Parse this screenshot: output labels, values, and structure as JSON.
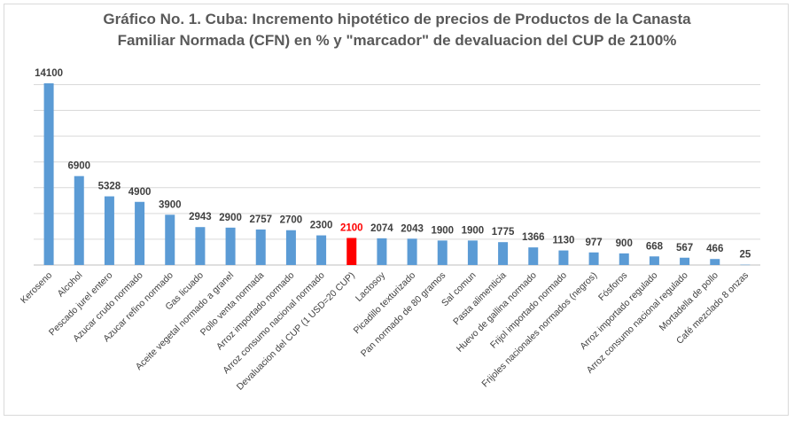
{
  "chart_data": {
    "type": "bar",
    "title_lines": [
      "Gráfico No. 1. Cuba: Incremento hipotético de precios de Productos de la Canasta",
      "Familiar Normada (CFN) en % y \"marcador\" de devaluacion del CUP de 2100%"
    ],
    "categories": [
      "Keroseno",
      "Alcohol",
      "Pescado jurel entero",
      "Azucar crudo normado",
      "Azucar refino normado",
      "Gas licuado",
      "Aceite vegetal normado a granel",
      "Pollo venta normada",
      "Arroz importado normado",
      "Arroz consumo nacional normado",
      "Devaluacion del CUP (1 USD=20 CUP)",
      "Lactosoy",
      "Picadillo texturizado",
      "Pan normado de 80 gramos",
      "Sal comun",
      "Pasta alimenticia",
      "Huevo de gallina normado",
      "Frijol importado normado",
      "Frijoles nacionales normados (negros)",
      "Fósforos",
      "Arroz importado regulado",
      "Arroz consumo nacional regulado",
      "Mortadella de pollo",
      "Café mezclado 8 onzas"
    ],
    "values": [
      14100,
      6900,
      5328,
      4900,
      3900,
      2943,
      2900,
      2757,
      2700,
      2300,
      2100,
      2074,
      2043,
      1900,
      1900,
      1775,
      1366,
      1130,
      977,
      900,
      668,
      567,
      466,
      25
    ],
    "highlight_index": 10,
    "ylim": [
      0,
      14100
    ],
    "grid": true,
    "gridline_step": 2000,
    "y_tick_labels_shown": false,
    "legend": "none",
    "colors": {
      "bar": "#5b9bd5",
      "highlight": "#ff0000",
      "label": "#404040",
      "highlight_label": "#ff0000",
      "grid": "#d9d9d9",
      "axis": "#bfbfbf",
      "title": "#595959"
    }
  }
}
